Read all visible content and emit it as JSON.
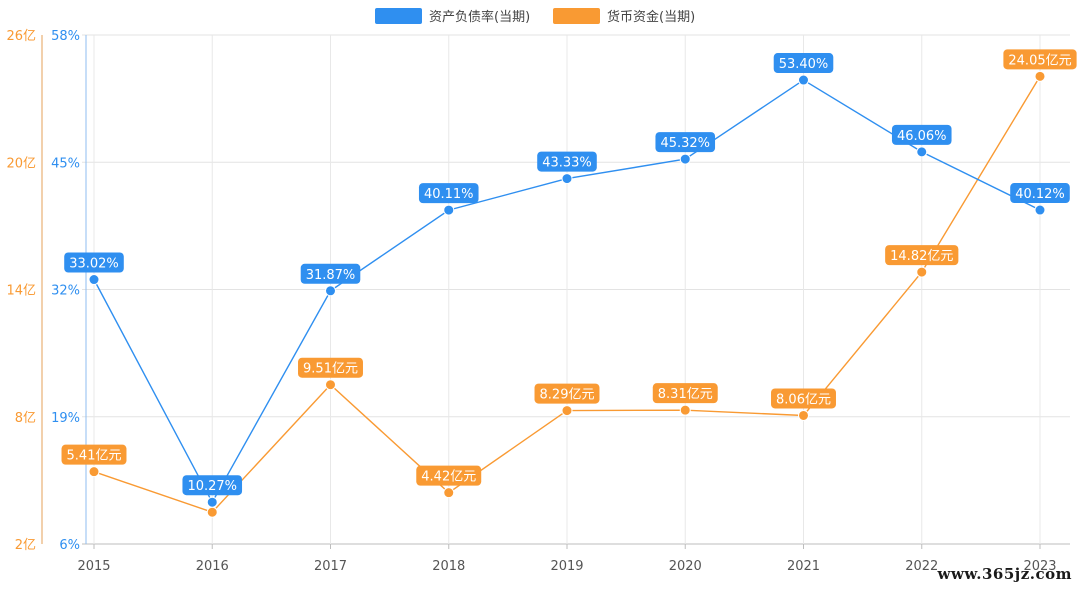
{
  "chart_data": {
    "type": "line",
    "categories": [
      "2015",
      "2016",
      "2017",
      "2018",
      "2019",
      "2020",
      "2021",
      "2022",
      "2023"
    ],
    "series": [
      {
        "name": "资产负债率(当期)",
        "axis": "right-inner",
        "color": "#2f8ff0",
        "values": [
          33.02,
          10.27,
          31.87,
          40.11,
          43.33,
          45.32,
          53.4,
          46.06,
          40.12
        ],
        "labels": [
          "33.02%",
          "10.27%",
          "31.87%",
          "40.11%",
          "43.33%",
          "45.32%",
          "53.40%",
          "46.06%",
          "40.12%"
        ]
      },
      {
        "name": "货币资金(当期)",
        "axis": "left-outer",
        "color": "#f99a33",
        "values": [
          5.41,
          3.5,
          9.51,
          4.42,
          8.29,
          8.31,
          8.06,
          14.82,
          24.05
        ],
        "labels": [
          "5.41亿元",
          "",
          "9.51亿元",
          "4.42亿元",
          "8.29亿元",
          "8.31亿元",
          "8.06亿元",
          "14.82亿元",
          "24.05亿元"
        ]
      }
    ],
    "y_axis_percent": {
      "min": 6,
      "max": 58,
      "ticks": [
        "6%",
        "19%",
        "32%",
        "45%",
        "58%"
      ],
      "color": "#2f8ff0"
    },
    "y_axis_money": {
      "min": 2,
      "max": 26,
      "ticks": [
        "2亿",
        "8亿",
        "14亿",
        "20亿",
        "26亿"
      ],
      "color": "#f99a33"
    },
    "grid": true,
    "legend_position": "top-center"
  },
  "watermark": "www.365jz.com"
}
